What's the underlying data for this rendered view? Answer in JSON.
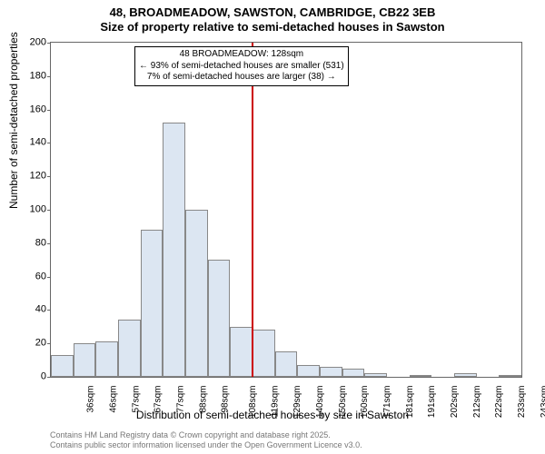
{
  "chart": {
    "type": "histogram",
    "title_line1": "48, BROADMEADOW, SAWSTON, CAMBRIDGE, CB22 3EB",
    "title_line2": "Size of property relative to semi-detached houses in Sawston",
    "y_label": "Number of semi-detached properties",
    "x_label": "Distribution of semi-detached houses by size in Sawston",
    "background_color": "#ffffff",
    "bar_fill": "#dce6f2",
    "bar_border": "#888888",
    "axis_color": "#666666",
    "marker_color": "#cc0000",
    "ylim": [
      0,
      200
    ],
    "ytick_step": 20,
    "x_categories": [
      "36sqm",
      "46sqm",
      "57sqm",
      "67sqm",
      "77sqm",
      "88sqm",
      "98sqm",
      "108sqm",
      "119sqm",
      "129sqm",
      "140sqm",
      "150sqm",
      "160sqm",
      "171sqm",
      "181sqm",
      "191sqm",
      "202sqm",
      "212sqm",
      "222sqm",
      "233sqm",
      "243sqm"
    ],
    "values": [
      13,
      20,
      21,
      34,
      88,
      152,
      100,
      70,
      30,
      28,
      15,
      7,
      6,
      5,
      2,
      0,
      1,
      0,
      2,
      0,
      1
    ],
    "marker_category_index": 9,
    "annotation": {
      "line1": "48 BROADMEADOW: 128sqm",
      "line2": "← 93% of semi-detached houses are smaller (531)",
      "line3": "7% of semi-detached houses are larger (38) →"
    },
    "footer_line1": "Contains HM Land Registry data © Crown copyright and database right 2025.",
    "footer_line2": "Contains public sector information licensed under the Open Government Licence v3.0.",
    "title_fontsize": 13,
    "label_fontsize": 12,
    "tick_fontsize": 11,
    "annotation_fontsize": 10,
    "footer_fontsize": 9
  }
}
